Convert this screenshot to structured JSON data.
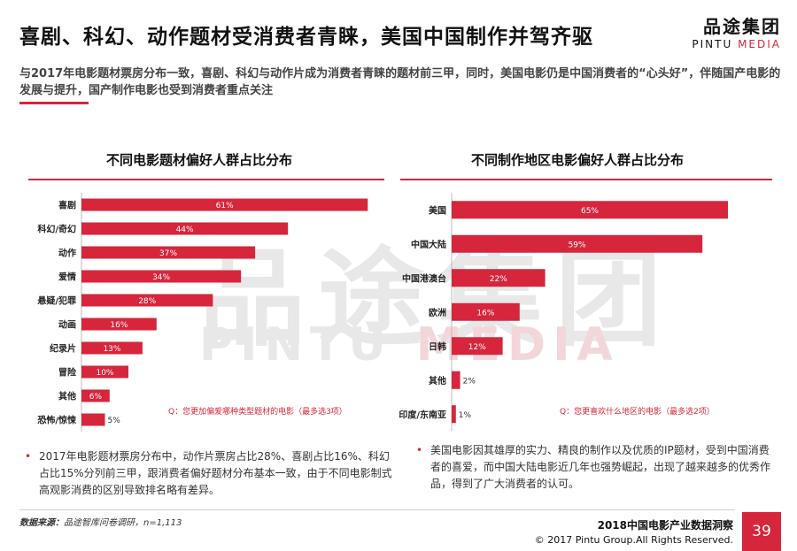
{
  "header": {
    "title": "喜剧、科幻、动作题材受消费者青睐，美国中国制作并驾齐驱",
    "logo_cn": "品途集团",
    "logo_en_a": "PINTU ",
    "logo_en_b": "MEDIA"
  },
  "subtitle": "与2017年电影题材票房分布一致，喜剧、科幻与动作片成为消费者青睐的题材前三甲，同时，美国电影仍是中国消费者的“心头好”，伴随国产电影的发展与提升，国产制作电影也受到消费者重点关注",
  "watermark": {
    "cn": "品途集团",
    "en_a": "PINTU ",
    "en_b": "MEDIA"
  },
  "colors": {
    "accent": "#d6263c",
    "bar": "#d6263c"
  },
  "chart_data": [
    {
      "type": "bar",
      "orientation": "horizontal",
      "title": "不同电影题材偏好人群占比分布",
      "categories": [
        "喜剧",
        "科幻/奇幻",
        "动作",
        "爱情",
        "悬疑/犯罪",
        "动画",
        "纪录片",
        "冒险",
        "其他",
        "恐怖/惊悚"
      ],
      "values": [
        61,
        44,
        37,
        34,
        28,
        16,
        13,
        10,
        6,
        5
      ],
      "value_labels": [
        "61%",
        "44%",
        "37%",
        "34%",
        "28%",
        "16%",
        "13%",
        "10%",
        "6%",
        "5%"
      ],
      "xlim": [
        0,
        100
      ],
      "note": "Q：您更加偏爱哪种类型题材的电影（最多选3项）"
    },
    {
      "type": "bar",
      "orientation": "horizontal",
      "title": "不同制作地区电影偏好人群占比分布",
      "categories": [
        "美国",
        "中国大陆",
        "中国港澳台",
        "欧洲",
        "日韩",
        "其他",
        "印度/东南亚"
      ],
      "values": [
        65,
        59,
        22,
        16,
        12,
        2,
        1
      ],
      "value_labels": [
        "65%",
        "59%",
        "22%",
        "16%",
        "12%",
        "2%",
        "1%"
      ],
      "xlim": [
        0,
        100
      ],
      "note": "Q：您更喜欢什么地区的电影（最多选2项）"
    }
  ],
  "bullets": {
    "left": "2017年电影题材票房分布中，动作片票房占比28%、喜剧占比16%、科幻占比15%分列前三甲，跟消费者偏好题材分布基本一致，由于不同电影制式高观影消费的区别导致排名略有差异。",
    "right": "美国电影因其雄厚的实力、精良的制作以及优质的IP题材，受到中国消费者的喜爱，而中国大陆电影近几年也强势崛起，出现了越来越多的优秀作品，得到了广大消费者的认可。",
    "marker": "•"
  },
  "footer": {
    "source_label": "数据来源：",
    "source_text": "品途智库问卷调研，n=1,113",
    "report": "2018中国电影产业数据洞察",
    "copyright": "© 2017 Pintu Group.All Rights Reserved.",
    "page": "39"
  }
}
